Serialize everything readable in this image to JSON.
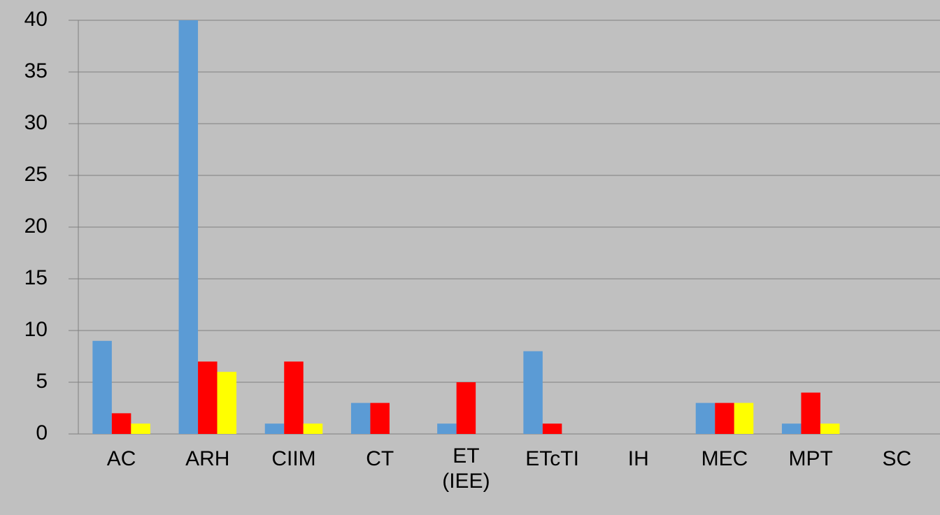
{
  "chart_data": {
    "type": "bar",
    "categories": [
      "AC",
      "ARH",
      "CIIM",
      "CT",
      "ET\n(IEE)",
      "ETcTI",
      "IH",
      "MEC",
      "MPT",
      "SC"
    ],
    "series": [
      {
        "color": "#5b9bd5",
        "values": [
          9,
          40,
          1,
          3,
          1,
          8,
          0,
          3,
          1,
          0
        ]
      },
      {
        "color": "#ff0000",
        "values": [
          2,
          7,
          7,
          3,
          5,
          1,
          0,
          3,
          4,
          0
        ]
      },
      {
        "color": "#ffff00",
        "values": [
          1,
          6,
          1,
          0,
          0,
          0,
          0,
          3,
          1,
          0
        ]
      }
    ],
    "ylim": [
      0,
      40
    ],
    "yticks": [
      0,
      5,
      10,
      15,
      20,
      25,
      30,
      35,
      40
    ],
    "grid": true
  }
}
